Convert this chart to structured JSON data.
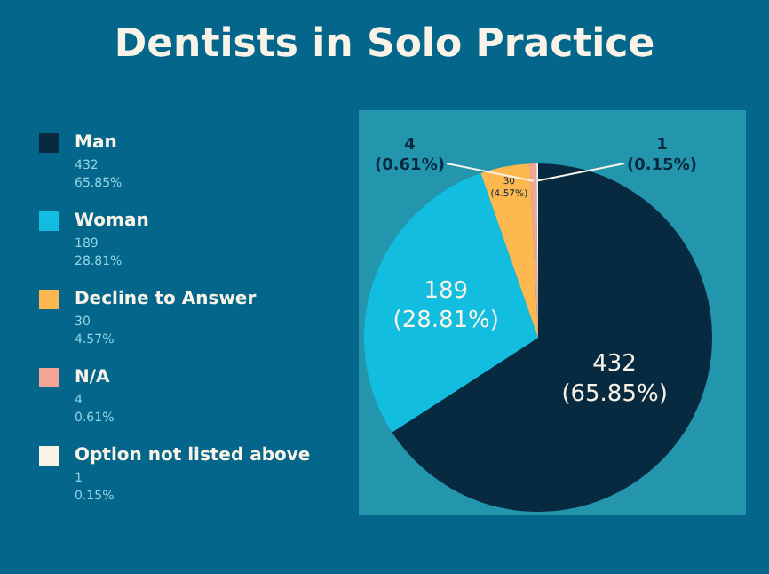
{
  "chart_data": {
    "type": "pie",
    "title": "Dentists in Solo Practice",
    "categories": [
      "Man",
      "Woman",
      "Decline to Answer",
      "N/A",
      "Option not listed above"
    ],
    "values": [
      432,
      189,
      30,
      4,
      1
    ],
    "colors": [
      "#072a40",
      "#12bde0",
      "#fdb94f",
      "#f5a595",
      "#f8f3e6"
    ],
    "value_labels": [
      "432\n(65.85%)",
      "189\n(28.81%)",
      "30\n(4.57%)",
      "4\n(0.61%)",
      "1\n(0.15%)"
    ],
    "legend": "left",
    "annotations": [
      "432",
      "65.85%",
      "189",
      "28.81%",
      "30",
      "4.57%",
      "4",
      "0.61%",
      "1",
      "0.15%"
    ]
  }
}
